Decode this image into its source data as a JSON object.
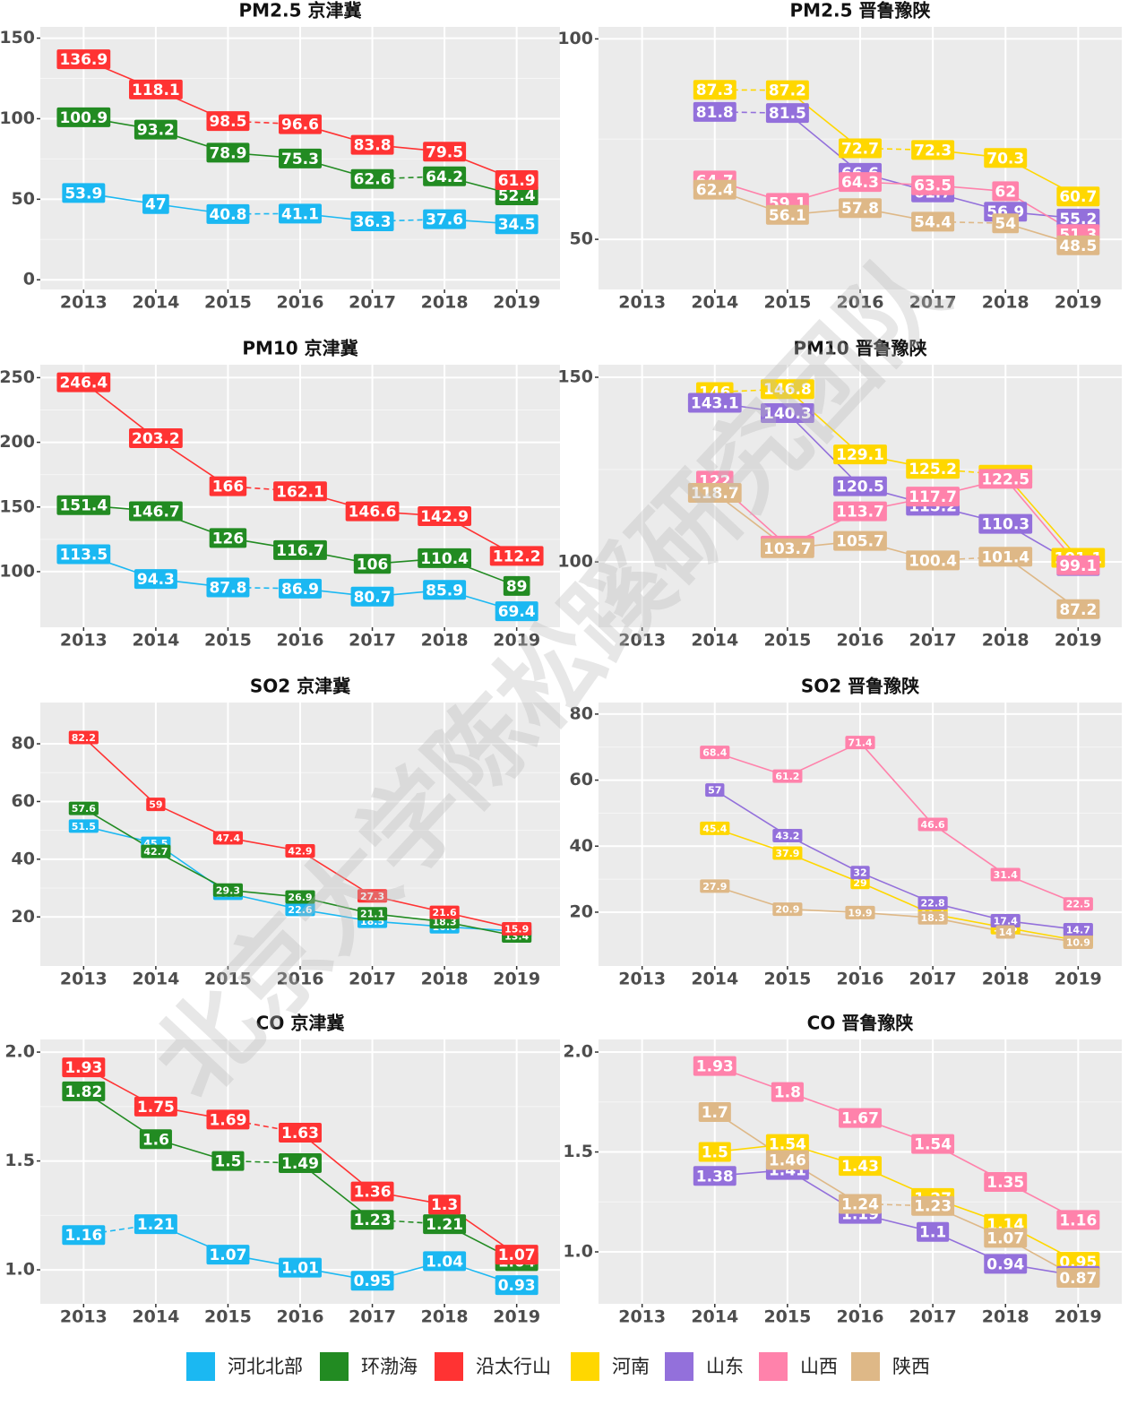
{
  "chart_data": [
    {
      "type": "line",
      "title": "PM2.5 京津冀",
      "categories": [
        "2013",
        "2014",
        "2015",
        "2016",
        "2017",
        "2018",
        "2019"
      ],
      "ylim": [
        -6,
        157
      ],
      "yticks": [
        0,
        50,
        100,
        150
      ],
      "grid": true,
      "series": [
        {
          "name": "河北北部",
          "color": "#1BB8F2",
          "values": [
            53.9,
            47,
            40.8,
            41.1,
            36.3,
            37.6,
            34.5
          ],
          "dashed_segments": [
            2,
            4
          ]
        },
        {
          "name": "环渤海",
          "color": "#228B22",
          "values": [
            100.9,
            93.2,
            78.9,
            75.3,
            62.6,
            64.2,
            52.4
          ],
          "dashed_segments": [
            4
          ]
        },
        {
          "name": "沿太行山",
          "color": "#FF3333",
          "values": [
            136.9,
            118.1,
            98.5,
            96.6,
            83.8,
            79.5,
            61.9
          ],
          "dashed_segments": [
            2
          ]
        }
      ]
    },
    {
      "type": "line",
      "title": "PM2.5 晋鲁豫陕",
      "categories": [
        "2013",
        "2014",
        "2015",
        "2016",
        "2017",
        "2018",
        "2019"
      ],
      "ylim": [
        37.5,
        103
      ],
      "yticks": [
        50,
        100
      ],
      "grid": true,
      "series": [
        {
          "name": "河南",
          "color": "#FFD700",
          "values": [
            null,
            87.3,
            87.2,
            72.7,
            72.3,
            70.3,
            60.7
          ],
          "dashed_segments": [
            1,
            3
          ]
        },
        {
          "name": "山东",
          "color": "#9370DB",
          "values": [
            null,
            81.8,
            81.5,
            66.6,
            61.7,
            56.9,
            55.2
          ],
          "dashed_segments": [
            1
          ]
        },
        {
          "name": "山西",
          "color": "#FF82AB",
          "values": [
            null,
            64.7,
            59.1,
            64.3,
            63.5,
            62,
            51.3
          ],
          "dashed_segments": []
        },
        {
          "name": "陕西",
          "color": "#DEB887",
          "values": [
            null,
            62.4,
            56.1,
            57.8,
            54.4,
            54,
            48.5
          ],
          "dashed_segments": [
            4
          ]
        }
      ]
    },
    {
      "type": "line",
      "title": "PM10 京津冀",
      "categories": [
        "2013",
        "2014",
        "2015",
        "2016",
        "2017",
        "2018",
        "2019"
      ],
      "ylim": [
        57,
        260
      ],
      "yticks": [
        100,
        150,
        200,
        250
      ],
      "grid": true,
      "series": [
        {
          "name": "河北北部",
          "color": "#1BB8F2",
          "values": [
            113.5,
            94.3,
            87.8,
            86.9,
            80.7,
            85.9,
            69.4
          ],
          "dashed_segments": [
            2
          ]
        },
        {
          "name": "环渤海",
          "color": "#228B22",
          "values": [
            151.4,
            146.7,
            126,
            116.7,
            106,
            110.4,
            89
          ],
          "dashed_segments": []
        },
        {
          "name": "沿太行山",
          "color": "#FF3333",
          "values": [
            246.4,
            203.2,
            166,
            162.1,
            146.6,
            142.9,
            112.2
          ],
          "dashed_segments": [
            2
          ]
        }
      ]
    },
    {
      "type": "line",
      "title": "PM10 晋鲁豫陕",
      "categories": [
        "2013",
        "2014",
        "2015",
        "2016",
        "2017",
        "2018",
        "2019"
      ],
      "ylim": [
        82.3,
        153.4
      ],
      "yticks": [
        100,
        150
      ],
      "grid": true,
      "series": [
        {
          "name": "河南",
          "color": "#FFD700",
          "values": [
            null,
            146,
            146.8,
            129.1,
            125.2,
            123.6,
            101.1
          ],
          "dashed_segments": [
            1,
            4
          ]
        },
        {
          "name": "山东",
          "color": "#9370DB",
          "values": [
            null,
            143.1,
            140.3,
            120.5,
            115.2,
            110.3,
            98.9
          ],
          "dashed_segments": []
        },
        {
          "name": "山西",
          "color": "#FF82AB",
          "values": [
            null,
            122,
            104.4,
            113.7,
            117.7,
            122.5,
            99.1
          ],
          "dashed_segments": []
        },
        {
          "name": "陕西",
          "color": "#DEB887",
          "values": [
            null,
            118.7,
            103.7,
            105.7,
            100.4,
            101.4,
            87.2
          ],
          "dashed_segments": [
            4
          ]
        }
      ]
    },
    {
      "type": "line",
      "title": "SO2 京津冀",
      "categories": [
        "2013",
        "2014",
        "2015",
        "2016",
        "2017",
        "2018",
        "2019"
      ],
      "ylim": [
        3,
        94.3
      ],
      "yticks": [
        20,
        40,
        60,
        80
      ],
      "grid": true,
      "series": [
        {
          "name": "河北北部",
          "color": "#1BB8F2",
          "values": [
            51.5,
            45.5,
            28.2,
            22.6,
            18.5,
            16.6,
            15.1
          ],
          "dashed_segments": []
        },
        {
          "name": "环渤海",
          "color": "#228B22",
          "values": [
            57.6,
            42.7,
            29.3,
            26.9,
            21.1,
            18.3,
            13.4
          ],
          "dashed_segments": []
        },
        {
          "name": "沿太行山",
          "color": "#FF3333",
          "values": [
            82.2,
            59,
            47.4,
            42.9,
            27.3,
            21.6,
            15.9
          ],
          "dashed_segments": []
        }
      ]
    },
    {
      "type": "line",
      "title": "SO2 晋鲁豫陕",
      "categories": [
        "2013",
        "2014",
        "2015",
        "2016",
        "2017",
        "2018",
        "2019"
      ],
      "ylim": [
        3.7,
        83.5
      ],
      "yticks": [
        20,
        40,
        60,
        80
      ],
      "grid": true,
      "series": [
        {
          "name": "河南",
          "color": "#FFD700",
          "values": [
            null,
            45.4,
            37.9,
            29,
            19.4,
            15.3,
            11.4
          ],
          "dashed_segments": []
        },
        {
          "name": "山东",
          "color": "#9370DB",
          "values": [
            null,
            57,
            43.2,
            32,
            22.8,
            17.4,
            14.7
          ],
          "dashed_segments": []
        },
        {
          "name": "山西",
          "color": "#FF82AB",
          "values": [
            null,
            68.4,
            61.2,
            71.4,
            46.6,
            31.4,
            22.5
          ],
          "dashed_segments": []
        },
        {
          "name": "陕西",
          "color": "#DEB887",
          "values": [
            null,
            27.9,
            20.9,
            19.9,
            18.3,
            14,
            10.9
          ],
          "dashed_segments": []
        }
      ]
    },
    {
      "type": "line",
      "title": "CO 京津冀",
      "categories": [
        "2013",
        "2014",
        "2015",
        "2016",
        "2017",
        "2018",
        "2019"
      ],
      "ylim": [
        0.844,
        2.058
      ],
      "yticks": [
        {
          "value": 1,
          "label": "1.0"
        },
        {
          "value": 1.5,
          "label": "1.5"
        },
        {
          "value": 2,
          "label": "2.0"
        }
      ],
      "grid": true,
      "series": [
        {
          "name": "河北北部",
          "color": "#1BB8F2",
          "values": [
            1.16,
            1.21,
            1.07,
            1.01,
            0.95,
            1.04,
            0.93
          ],
          "dashed_segments": [
            0
          ]
        },
        {
          "name": "环渤海",
          "color": "#228B22",
          "values": [
            1.82,
            1.6,
            1.5,
            1.49,
            1.23,
            1.21,
            1.04
          ],
          "dashed_segments": [
            2,
            4
          ]
        },
        {
          "name": "沿太行山",
          "color": "#FF3333",
          "values": [
            1.93,
            1.75,
            1.69,
            1.63,
            1.36,
            1.3,
            1.07
          ],
          "dashed_segments": [
            2
          ]
        }
      ]
    },
    {
      "type": "line",
      "title": "CO 晋鲁豫陕",
      "categories": [
        "2013",
        "2014",
        "2015",
        "2016",
        "2017",
        "2018",
        "2019"
      ],
      "ylim": [
        0.74,
        2.063
      ],
      "yticks": [
        {
          "value": 1,
          "label": "1.0"
        },
        {
          "value": 1.5,
          "label": "1.5"
        },
        {
          "value": 2,
          "label": "2.0"
        }
      ],
      "grid": true,
      "series": [
        {
          "name": "河南",
          "color": "#FFD700",
          "values": [
            null,
            1.5,
            1.54,
            1.43,
            1.27,
            1.14,
            0.95
          ],
          "dashed_segments": []
        },
        {
          "name": "山东",
          "color": "#9370DB",
          "values": [
            null,
            1.38,
            1.41,
            1.19,
            1.1,
            0.94,
            0.88
          ],
          "dashed_segments": []
        },
        {
          "name": "山西",
          "color": "#FF82AB",
          "values": [
            null,
            1.93,
            1.8,
            1.67,
            1.54,
            1.35,
            1.16
          ],
          "dashed_segments": []
        },
        {
          "name": "陕西",
          "color": "#DEB887",
          "values": [
            null,
            1.7,
            1.46,
            1.24,
            1.23,
            1.07,
            0.87
          ],
          "dashed_segments": [
            3
          ]
        }
      ]
    }
  ],
  "watermark": "北京大学陈松蹊研究团队"
}
